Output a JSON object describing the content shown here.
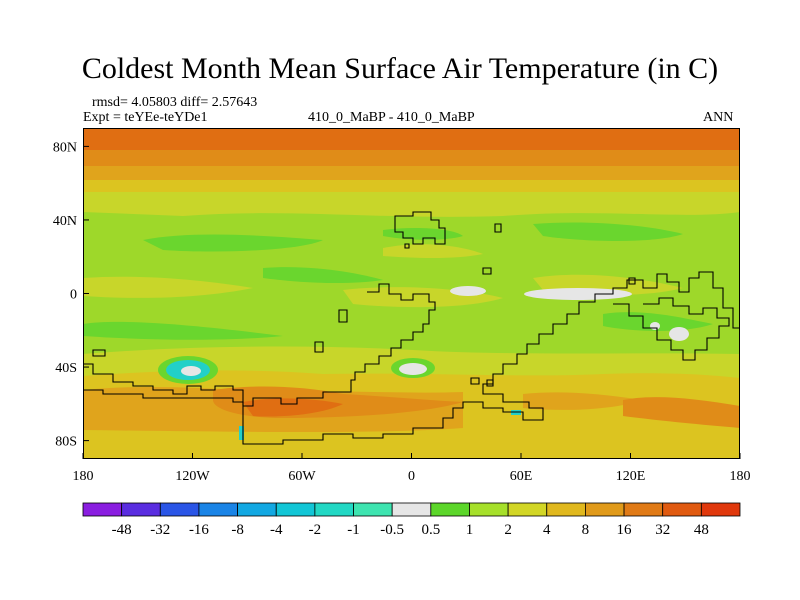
{
  "chart_data": {
    "type": "heatmap",
    "title": "Coldest Month Mean Surface Air Temperature (in C)",
    "stats_line": "rmsd= 4.05803 diff= 2.57643",
    "expt_line": "Expt = teYEe-teYDe1",
    "center_label": "410_0_MaBP - 410_0_MaBP",
    "right_label": "ANN",
    "x_axis": {
      "range": [
        -180,
        180
      ],
      "ticks": [
        {
          "value": -180,
          "label": "180"
        },
        {
          "value": -120,
          "label": "120W"
        },
        {
          "value": -60,
          "label": "60W"
        },
        {
          "value": 0,
          "label": "0"
        },
        {
          "value": 60,
          "label": "60E"
        },
        {
          "value": 120,
          "label": "120E"
        },
        {
          "value": 180,
          "label": "180"
        }
      ]
    },
    "y_axis": {
      "range": [
        -90,
        90
      ],
      "ticks": [
        {
          "value": 80,
          "label": "80N"
        },
        {
          "value": 40,
          "label": "40N"
        },
        {
          "value": 0,
          "label": "0"
        },
        {
          "value": -40,
          "label": "40S"
        },
        {
          "value": -80,
          "label": "80S"
        }
      ]
    },
    "colorbar": {
      "levels": [
        "-48",
        "-32",
        "-16",
        "-8",
        "-4",
        "-2",
        "-1",
        "-0.5",
        "0.5",
        "1",
        "2",
        "4",
        "8",
        "16",
        "32",
        "48"
      ],
      "colors": [
        "#8a1ee0",
        "#5a2de0",
        "#2a55e6",
        "#1a84e6",
        "#12a8e2",
        "#12c6d6",
        "#22d8c4",
        "#3ee4b0",
        "#e6e6e6",
        "#5cd62a",
        "#a6e02a",
        "#d2d626",
        "#e0b81e",
        "#e09a1a",
        "#e07a16",
        "#e05a10",
        "#e0380c"
      ]
    },
    "field_colors": {
      "background": "#9ed82a",
      "warm": "#c8d62a",
      "warmer": "#dcc420",
      "hot": "#e0a41c",
      "hotter": "#e08c18",
      "hottest": "#e06e12",
      "cool": "#6ad62e",
      "neutral": "#e6e6e6",
      "cold": "#22d0c8",
      "outline": "#000000"
    }
  }
}
